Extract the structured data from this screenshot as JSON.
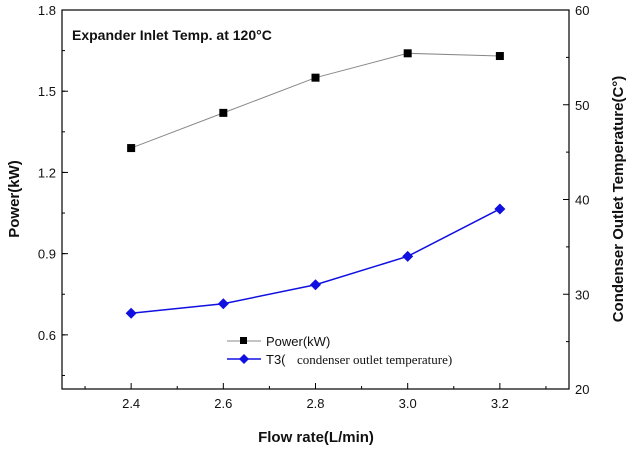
{
  "chart_data": {
    "type": "line",
    "annotation": "Expander Inlet Temp. at 120°C",
    "xlabel": "Flow rate(L/min)",
    "ylabel_left": "Power(kW)",
    "ylabel_right": "Condenser Outlet Temperature(C°)",
    "x": [
      2.4,
      2.6,
      2.8,
      3.0,
      3.2
    ],
    "xlim": [
      2.25,
      3.35
    ],
    "x_ticks": [
      "2.4",
      "2.6",
      "2.8",
      "3.0",
      "3.2"
    ],
    "ylim_left": [
      0.4,
      1.8
    ],
    "y_ticks_left": [
      "0.6",
      "0.9",
      "1.2",
      "1.5",
      "1.8"
    ],
    "ylim_right": [
      20,
      60
    ],
    "y_ticks_right": [
      "20",
      "30",
      "40",
      "50",
      "60"
    ],
    "grid": false,
    "legend_position": "bottom-center",
    "series": [
      {
        "name": "Power(kW)",
        "axis": "left",
        "marker": "square",
        "color": "#000000",
        "line_color": "#888888",
        "values": [
          1.29,
          1.42,
          1.55,
          1.64,
          1.63
        ]
      },
      {
        "name_prefix": "T3(",
        "name_rest": "condenser outlet temperature)",
        "axis": "right",
        "marker": "diamond",
        "color": "#1010e0",
        "line_color": "#1010e0",
        "values": [
          28,
          29,
          31,
          34,
          39
        ]
      }
    ]
  }
}
